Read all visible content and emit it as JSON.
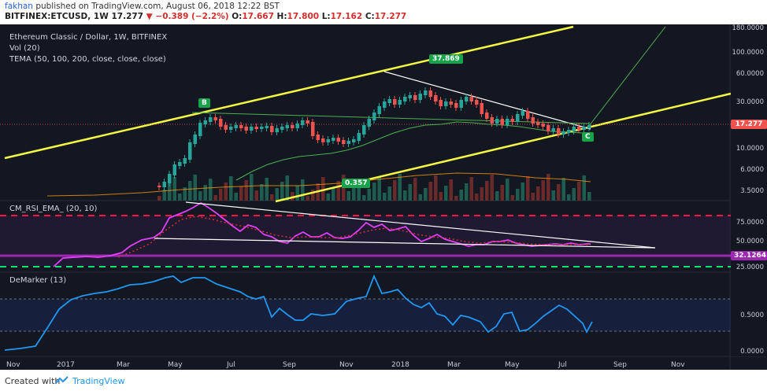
{
  "header": {
    "author": "fakhan",
    "published": "published on TradingView.com, August 06, 2018 12:22 BST",
    "symbol": "BITFINEX:ETCUSD",
    "interval": "1W",
    "last": "17.277",
    "change": "−0.389 (−2.2%)",
    "open_label": "O:",
    "open": "17.667",
    "high_label": "H:",
    "high": "17.800",
    "low_label": "L:",
    "low": "17.162",
    "close_label": "C:",
    "close": "17.277"
  },
  "legends": {
    "title": "Ethereum Classic / Dollar, 1W, BITFINEX",
    "vol": "Vol (20)",
    "tema": "TEMA (50, 100, 200, close, close, close)",
    "rsi": "CM_RSI_EMA_ (20, 10)",
    "demarker": "DeMarker (13)"
  },
  "price_axis": [
    "180.0000",
    "100.0000",
    "60.0000",
    "30.0000",
    "10.0000",
    "6.0000",
    "3.5000"
  ],
  "price_tag": "17.277",
  "rsi_axis": [
    "75.0000",
    "50.0000",
    "25.0000"
  ],
  "rsi_tag": "32.1264",
  "dem_axis": [
    "0.5000",
    "0.0000"
  ],
  "x_axis": [
    "Nov",
    "2017",
    "Mar",
    "May",
    "Jul",
    "Sep",
    "Nov",
    "2018",
    "Mar",
    "May",
    "Jul",
    "Sep",
    "Nov"
  ],
  "annotations": {
    "b": "B",
    "c": "C",
    "high_level": "37.869",
    "low_level": "0.357"
  },
  "colors": {
    "bg": "#131722",
    "up": "#26a69a",
    "down": "#ef5350",
    "yellow": "#f5f543",
    "rsi": "#e040fb",
    "dem": "#2196f3",
    "green_dash": "#00e676",
    "red_dash": "#ff1744"
  },
  "footer": {
    "created": "Created with",
    "brand": "TradingView"
  }
}
